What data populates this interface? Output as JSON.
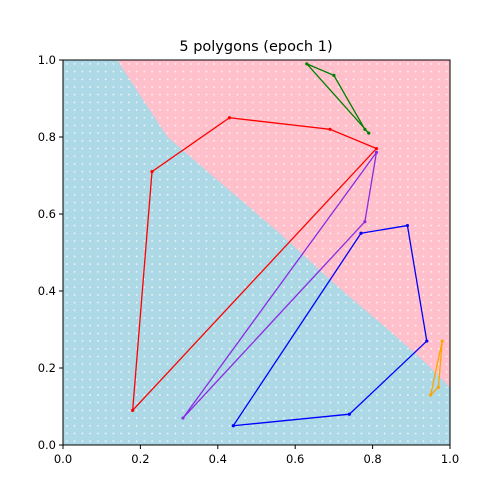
{
  "chart_data": {
    "type": "scatter",
    "title": "5 polygons (epoch  1)",
    "xlabel": "",
    "ylabel": "",
    "xlim": [
      0.0,
      1.0
    ],
    "ylim": [
      0.0,
      1.0
    ],
    "x_ticks": [
      "0.0",
      "0.2",
      "0.4",
      "0.6",
      "0.8",
      "1.0"
    ],
    "y_ticks": [
      "0.0",
      "0.2",
      "0.4",
      "0.6",
      "0.8",
      "1.0"
    ],
    "grid": false,
    "legend": "none",
    "background_regions": {
      "colors": {
        "lower": "#add8e6",
        "upper": "#ffc0cb"
      },
      "boundary": [
        [
          0.14,
          1.0
        ],
        [
          0.27,
          0.8
        ],
        [
          0.42,
          0.67
        ],
        [
          0.56,
          0.55
        ],
        [
          0.7,
          0.42
        ],
        [
          0.84,
          0.3
        ],
        [
          0.93,
          0.22
        ],
        [
          1.0,
          0.15
        ]
      ],
      "dot_color": "#ffffff"
    },
    "series": [
      {
        "color": "#ff0000",
        "closed": true,
        "points": [
          [
            0.43,
            0.85
          ],
          [
            0.69,
            0.82
          ],
          [
            0.81,
            0.77
          ],
          [
            0.18,
            0.09
          ],
          [
            0.23,
            0.71
          ]
        ]
      },
      {
        "color": "#8a2be2",
        "closed": true,
        "points": [
          [
            0.81,
            0.76
          ],
          [
            0.78,
            0.58
          ],
          [
            0.31,
            0.07
          ]
        ]
      },
      {
        "color": "#0000ff",
        "closed": true,
        "points": [
          [
            0.77,
            0.55
          ],
          [
            0.89,
            0.57
          ],
          [
            0.94,
            0.27
          ],
          [
            0.74,
            0.08
          ],
          [
            0.44,
            0.05
          ]
        ]
      },
      {
        "color": "#008000",
        "closed": true,
        "points": [
          [
            0.63,
            0.99
          ],
          [
            0.7,
            0.96
          ],
          [
            0.78,
            0.82
          ],
          [
            0.79,
            0.81
          ]
        ]
      },
      {
        "color": "#ffa500",
        "closed": true,
        "points": [
          [
            0.98,
            0.27
          ],
          [
            0.97,
            0.15
          ],
          [
            0.95,
            0.13
          ]
        ]
      }
    ]
  }
}
